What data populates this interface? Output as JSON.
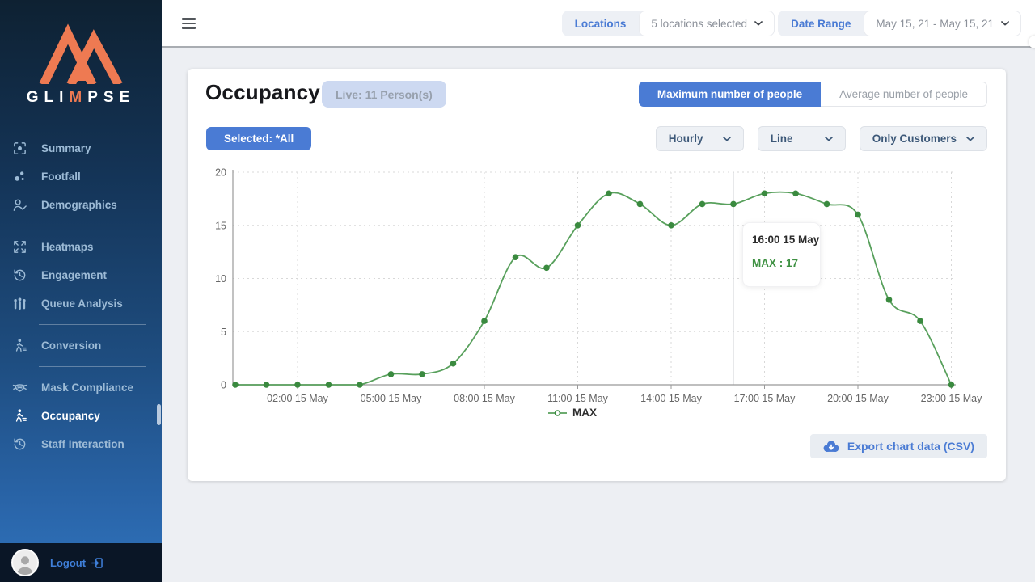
{
  "colors": {
    "accent_blue": "#4a7bd4",
    "brand_orange": "#ee7a52",
    "line_green": "#58a05c",
    "point_green": "#3a8a3f"
  },
  "sidebar": {
    "brand": {
      "pre": "GLI",
      "m": "M",
      "post": "PSE"
    },
    "items": [
      {
        "label": "Summary",
        "icon": "summary-scan-icon"
      },
      {
        "label": "Footfall",
        "icon": "footfall-icon"
      },
      {
        "label": "Demographics",
        "icon": "demographics-icon",
        "divider_after": true
      },
      {
        "label": "Heatmaps",
        "icon": "heatmaps-expand-icon"
      },
      {
        "label": "Engagement",
        "icon": "engagement-history-icon"
      },
      {
        "label": "Queue Analysis",
        "icon": "queue-analysis-icon",
        "divider_after": true
      },
      {
        "label": "Conversion",
        "icon": "conversion-walk-icon",
        "divider_after": true
      },
      {
        "label": "Mask Compliance",
        "icon": "mask-compliance-icon"
      },
      {
        "label": "Occupancy",
        "icon": "occupancy-walk-icon",
        "active": true
      },
      {
        "label": "Staff Interaction",
        "icon": "staff-interaction-history-icon"
      }
    ],
    "logout": "Logout"
  },
  "topbar": {
    "locations_label": "Locations",
    "locations_value": "5 locations selected",
    "date_range_label": "Date Range",
    "date_range_value": "May 15, 21 - May 15, 21"
  },
  "main": {
    "title": "Occupancy",
    "live_badge": "Live: 11 Person(s)",
    "toggle_active": "Maximum number of people",
    "toggle_inactive": "Average number of people",
    "selected_button": "Selected: *All",
    "dropdowns": [
      {
        "value": "Hourly"
      },
      {
        "value": "Line"
      },
      {
        "value": "Only Customers"
      }
    ],
    "export_button": "Export chart data (CSV)"
  },
  "chart_data": {
    "type": "line",
    "x_date": "15 May",
    "x": [
      "00:00",
      "01:00",
      "02:00",
      "03:00",
      "04:00",
      "05:00",
      "06:00",
      "07:00",
      "08:00",
      "09:00",
      "10:00",
      "11:00",
      "12:00",
      "13:00",
      "14:00",
      "15:00",
      "16:00",
      "17:00",
      "18:00",
      "19:00",
      "20:00",
      "21:00",
      "22:00",
      "23:00"
    ],
    "series": [
      {
        "name": "MAX",
        "color": "#58a05c",
        "point_color": "#3a8a3f",
        "values": [
          0,
          0,
          0,
          0,
          0,
          1,
          1,
          2,
          6,
          12,
          11,
          15,
          18,
          17,
          15,
          17,
          17,
          18,
          18,
          17,
          16,
          8,
          6,
          0
        ]
      }
    ],
    "ylim": [
      0,
      20
    ],
    "yticks": [
      0,
      5,
      10,
      15,
      20
    ],
    "x_tick_hours": [
      2,
      5,
      8,
      11,
      14,
      17,
      20,
      23
    ],
    "x_tick_labels": [
      "02:00 15 May",
      "05:00 15 May",
      "08:00 15 May",
      "11:00 15 May",
      "14:00 15 May",
      "17:00 15 May",
      "20:00 15 May",
      "23:00 15 May"
    ],
    "grid": "dashed",
    "legend_position": "bottom",
    "crosshair_hour": 16,
    "tooltip": {
      "title": "16:00 15 May",
      "label": "MAX : 17",
      "value": 17
    }
  }
}
